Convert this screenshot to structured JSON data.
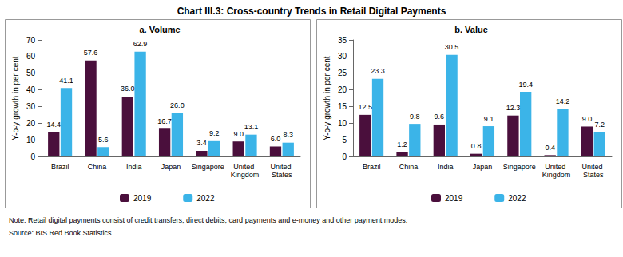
{
  "title": "Chart III.3: Cross-country Trends in Retail Digital Payments",
  "note": "Note: Retail digital payments consist of credit transfers, direct debits, card payments and e-money and other payment modes.",
  "source": "Source: BIS Red Book Statistics.",
  "chart_data": [
    {
      "type": "bar",
      "title": "a. Volume",
      "y_label": "Y-o-y growth in per cent",
      "categories": [
        "Brazil",
        "China",
        "India",
        "Japan",
        "Singapore",
        "United Kingdom",
        "United States"
      ],
      "series": [
        {
          "name": "2019",
          "color": "#4a0f3c",
          "values": [
            14.4,
            57.6,
            36.0,
            16.7,
            3.4,
            9.0,
            6.0
          ],
          "value_labels": [
            "14.4",
            "57.6",
            "36.0",
            "16.7",
            "3.4",
            "9.0",
            "6.0"
          ]
        },
        {
          "name": "2022",
          "color": "#3bb4e8",
          "values": [
            41.1,
            5.6,
            62.9,
            26.0,
            9.2,
            13.1,
            8.3
          ],
          "value_labels": [
            "41.1",
            "5.6",
            "62.9",
            "26.0",
            "9.2",
            "13.1",
            "8.3"
          ]
        }
      ],
      "ylim": [
        0,
        70
      ],
      "yticks": [
        0,
        10,
        20,
        30,
        40,
        50,
        60,
        70
      ],
      "grid": false,
      "data_labels": true,
      "legend": "bottom"
    },
    {
      "type": "bar",
      "title": "b. Value",
      "y_label": "Y-o-y growth in per cent",
      "categories": [
        "Brazil",
        "China",
        "India",
        "Japan",
        "Singapore",
        "United Kingdom",
        "United States"
      ],
      "series": [
        {
          "name": "2019",
          "color": "#4a0f3c",
          "values": [
            12.5,
            1.2,
            9.6,
            0.8,
            12.3,
            0.4,
            9.0
          ],
          "value_labels": [
            "12.5",
            "1.2",
            "9.6",
            "0.8",
            "12.3",
            "0.4",
            "9.0"
          ]
        },
        {
          "name": "2022",
          "color": "#3bb4e8",
          "values": [
            23.3,
            9.8,
            30.5,
            9.1,
            19.4,
            14.2,
            7.2
          ],
          "value_labels": [
            "23.3",
            "9.8",
            "30.5",
            "9.1",
            "19.4",
            "14.2",
            "7.2"
          ]
        }
      ],
      "ylim": [
        0,
        35
      ],
      "yticks": [
        0,
        5,
        10,
        15,
        20,
        25,
        30,
        35
      ],
      "grid": false,
      "data_labels": true,
      "legend": "bottom"
    }
  ]
}
